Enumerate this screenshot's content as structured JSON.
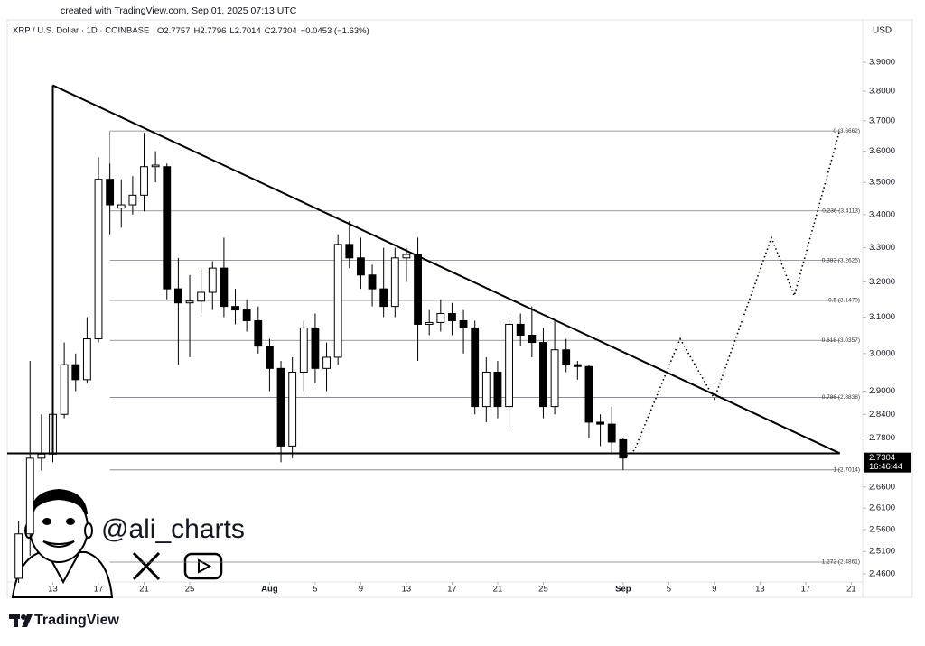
{
  "header": {
    "created": "created with TradingView.com, Sep 01, 2025 07:13 UTC",
    "symbol": "XRP / U.S. Dollar · 1D · COINBASE",
    "ohlc_letters": [
      "O",
      "H",
      "L",
      "C"
    ],
    "change": "−0.0453 (−1.63%)"
  },
  "chart_data": {
    "type": "candlestick",
    "currency": "USD",
    "log_scale": true,
    "grid": false,
    "up_color": "#ffffff",
    "down_color": "#000000",
    "x": [
      "Jul 10",
      "Jul 11",
      "Jul 12",
      "Jul 13",
      "Jul 14",
      "Jul 15",
      "Jul 16",
      "Jul 17",
      "Jul 18",
      "Jul 19",
      "Jul 20",
      "Jul 21",
      "Jul 22",
      "Jul 23",
      "Jul 24",
      "Jul 25",
      "Jul 26",
      "Jul 27",
      "Jul 28",
      "Jul 29",
      "Jul 30",
      "Jul 31",
      "Aug 1",
      "Aug 2",
      "Aug 3",
      "Aug 4",
      "Aug 5",
      "Aug 6",
      "Aug 7",
      "Aug 8",
      "Aug 9",
      "Aug 10",
      "Aug 11",
      "Aug 12",
      "Aug 13",
      "Aug 14",
      "Aug 15",
      "Aug 16",
      "Aug 17",
      "Aug 18",
      "Aug 19",
      "Aug 20",
      "Aug 21",
      "Aug 22",
      "Aug 23",
      "Aug 24",
      "Aug 25",
      "Aug 26",
      "Aug 27",
      "Aug 28",
      "Aug 29",
      "Aug 30",
      "Aug 31",
      "Sep 1"
    ],
    "open": [
      2.45,
      2.55,
      2.73,
      2.74,
      2.84,
      2.97,
      2.93,
      3.04,
      3.51,
      3.42,
      3.43,
      3.46,
      3.55,
      3.55,
      3.18,
      3.14,
      3.145,
      3.17,
      3.24,
      3.13,
      3.12,
      3.09,
      3.02,
      2.96,
      2.76,
      2.95,
      3.07,
      2.96,
      2.99,
      3.31,
      3.27,
      3.22,
      3.18,
      3.13,
      3.27,
      3.28,
      3.08,
      3.085,
      3.11,
      3.09,
      3.07,
      2.86,
      2.95,
      2.86,
      3.08,
      3.05,
      3.03,
      2.86,
      3.01,
      2.97,
      2.965,
      2.82,
      2.815,
      2.7757
    ],
    "high": [
      2.58,
      2.98,
      2.84,
      2.91,
      3.03,
      3.0,
      3.1,
      3.58,
      3.56,
      3.51,
      3.52,
      3.66,
      3.6,
      3.56,
      3.27,
      3.22,
      3.24,
      3.26,
      3.33,
      3.18,
      3.15,
      3.13,
      3.04,
      2.98,
      2.99,
      3.09,
      3.11,
      3.03,
      3.34,
      3.38,
      3.33,
      3.25,
      3.3,
      3.3,
      3.3,
      3.33,
      3.12,
      3.15,
      3.14,
      3.12,
      3.09,
      2.99,
      2.98,
      3.1,
      3.11,
      3.13,
      3.07,
      3.09,
      3.04,
      2.98,
      2.97,
      2.84,
      2.86,
      2.7796
    ],
    "low": [
      2.44,
      2.5,
      2.7,
      2.72,
      2.83,
      2.9,
      2.92,
      3.03,
      3.34,
      3.36,
      3.4,
      3.41,
      3.5,
      3.15,
      2.97,
      2.99,
      3.11,
      3.12,
      3.1,
      3.08,
      3.06,
      3.0,
      2.9,
      2.72,
      2.73,
      2.9,
      2.92,
      2.9,
      2.97,
      3.24,
      3.18,
      3.13,
      3.1,
      3.1,
      3.2,
      2.98,
      3.05,
      3.06,
      3.05,
      3.0,
      2.84,
      2.82,
      2.83,
      2.8,
      3.02,
      2.99,
      2.83,
      2.84,
      2.95,
      2.93,
      2.78,
      2.76,
      2.74,
      2.7014
    ],
    "close": [
      2.55,
      2.73,
      2.74,
      2.84,
      2.97,
      2.93,
      3.04,
      3.51,
      3.43,
      3.43,
      3.46,
      3.55,
      3.555,
      3.18,
      3.14,
      3.145,
      3.17,
      3.24,
      3.13,
      3.12,
      3.09,
      3.02,
      2.96,
      2.76,
      2.95,
      3.07,
      2.96,
      2.99,
      3.31,
      3.27,
      3.22,
      3.18,
      3.13,
      3.27,
      3.28,
      3.08,
      3.085,
      3.11,
      3.09,
      3.07,
      2.86,
      2.95,
      2.86,
      3.08,
      3.05,
      3.03,
      2.86,
      3.01,
      2.97,
      2.965,
      2.82,
      2.815,
      2.77,
      2.7304
    ],
    "countdown": "16:46:44",
    "xlim": [
      "Jul 9",
      "Sep 22"
    ],
    "xticks": [
      {
        "value": "Jul 13",
        "label": "13"
      },
      {
        "value": "Jul 17",
        "label": "17"
      },
      {
        "value": "Jul 21",
        "label": "21"
      },
      {
        "value": "Jul 25",
        "label": "25"
      },
      {
        "value": "Aug 1",
        "label": "Aug"
      },
      {
        "value": "Aug 5",
        "label": "5"
      },
      {
        "value": "Aug 9",
        "label": "9"
      },
      {
        "value": "Aug 13",
        "label": "13"
      },
      {
        "value": "Aug 17",
        "label": "17"
      },
      {
        "value": "Aug 21",
        "label": "21"
      },
      {
        "value": "Aug 25",
        "label": "25"
      },
      {
        "value": "Sep 1",
        "label": "Sep"
      },
      {
        "value": "Sep 5",
        "label": "5"
      },
      {
        "value": "Sep 9",
        "label": "9"
      },
      {
        "value": "Sep 13",
        "label": "13"
      },
      {
        "value": "Sep 17",
        "label": "17"
      },
      {
        "value": "Sep 21",
        "label": "21"
      }
    ],
    "ylim": [
      2.442,
      3.977
    ],
    "yticks": [
      {
        "value": 3.9,
        "label": "3.9000"
      },
      {
        "value": 3.8,
        "label": "3.8000"
      },
      {
        "value": 3.7,
        "label": "3.7000"
      },
      {
        "value": 3.6,
        "label": "3.6000"
      },
      {
        "value": 3.5,
        "label": "3.5000"
      },
      {
        "value": 3.4,
        "label": "3.4000"
      },
      {
        "value": 3.3,
        "label": "3.3000"
      },
      {
        "value": 3.2,
        "label": "3.2000"
      },
      {
        "value": 3.1,
        "label": "3.1000"
      },
      {
        "value": 3.0,
        "label": "3.0000"
      },
      {
        "value": 2.9,
        "label": "2.9000"
      },
      {
        "value": 2.84,
        "label": "2.8400"
      },
      {
        "value": 2.78,
        "label": "2.7800"
      },
      {
        "value": 2.66,
        "label": "2.6600"
      },
      {
        "value": 2.61,
        "label": "2.6100"
      },
      {
        "value": 2.56,
        "label": "2.5600"
      },
      {
        "value": 2.51,
        "label": "2.5100"
      },
      {
        "value": 2.46,
        "label": "2.4600"
      }
    ],
    "trendlines": [
      {
        "x": [
          "Jul 13",
          "Sep 20"
        ],
        "y": [
          3.82,
          2.742
        ]
      },
      {
        "x": [
          "Jul 13",
          "Jul 13"
        ],
        "y": [
          3.82,
          2.742
        ]
      },
      {
        "x": [
          "Jul 9",
          "Sep 20"
        ],
        "y": [
          2.742,
          2.742
        ]
      }
    ],
    "fib_start": "Jul 18",
    "fib_levels": [
      {
        "label": "0 (3.6662)",
        "price": 3.6662
      },
      {
        "label": "0.236 (3.4113)",
        "price": 3.4113
      },
      {
        "label": "0.382 (3.2625)",
        "price": 3.2625
      },
      {
        "label": "0.5 (3.1470)",
        "price": 3.147
      },
      {
        "label": "0.618 (3.0357)",
        "price": 3.0357
      },
      {
        "label": "0.786 (2.8838)",
        "price": 2.8838
      },
      {
        "label": "1 (2.7014)",
        "price": 2.7014
      },
      {
        "label": "1.272 (2.4861)",
        "price": 2.4861
      }
    ],
    "projection": {
      "x": [
        "Sep 1",
        "Sep 2",
        "Sep 6",
        "Sep 9",
        "Sep 14",
        "Sep 16",
        "Sep 20"
      ],
      "y": [
        2.73,
        2.75,
        3.04,
        2.88,
        3.33,
        3.16,
        3.67
      ]
    }
  },
  "branding": {
    "handle": "@ali_charts",
    "logo": "TradingView"
  }
}
